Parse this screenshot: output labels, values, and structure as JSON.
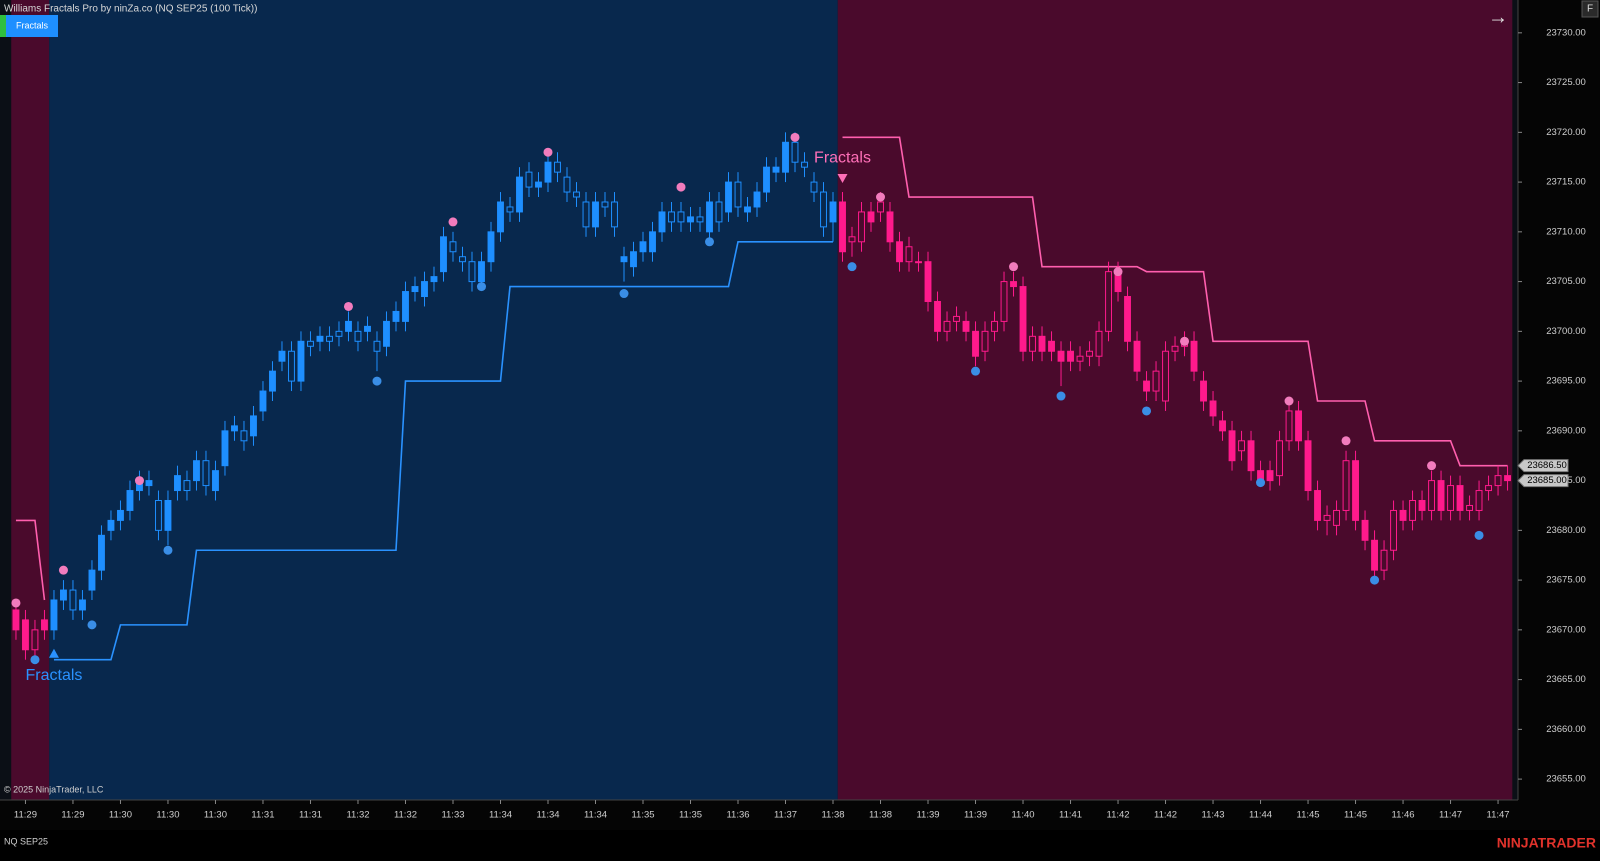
{
  "ui": {
    "window_title": "Williams Fractals Pro by ninZa.co (NQ SEP25 (100 Tick))",
    "tab": "Fractals",
    "copyright": "© 2025 NinjaTrader, LLC",
    "instrument": "NQ SEP25",
    "brand": "NINJATRADER",
    "arrow": "→",
    "corner_button": "F"
  },
  "chart_data": {
    "type": "candlestick",
    "xlim": [
      -1.68,
      158.1
    ],
    "ylim": [
      23652.9,
      23733.3
    ],
    "xticks": [
      {
        "value": 1,
        "label": "11:29"
      },
      {
        "value": 6,
        "label": "11:29"
      },
      {
        "value": 11,
        "label": "11:30"
      },
      {
        "value": 16,
        "label": "11:30"
      },
      {
        "value": 21,
        "label": "11:30"
      },
      {
        "value": 26,
        "label": "11:31"
      },
      {
        "value": 31,
        "label": "11:31"
      },
      {
        "value": 36,
        "label": "11:32"
      },
      {
        "value": 41,
        "label": "11:32"
      },
      {
        "value": 46,
        "label": "11:33"
      },
      {
        "value": 51,
        "label": "11:34"
      },
      {
        "value": 56,
        "label": "11:34"
      },
      {
        "value": 61,
        "label": "11:34"
      },
      {
        "value": 66,
        "label": "11:35"
      },
      {
        "value": 71,
        "label": "11:35"
      },
      {
        "value": 76,
        "label": "11:36"
      },
      {
        "value": 81,
        "label": "11:37"
      },
      {
        "value": 86,
        "label": "11:38"
      },
      {
        "value": 91,
        "label": "11:38"
      },
      {
        "value": 96,
        "label": "11:39"
      },
      {
        "value": 101,
        "label": "11:39"
      },
      {
        "value": 106,
        "label": "11:40"
      },
      {
        "value": 111,
        "label": "11:41"
      },
      {
        "value": 116,
        "label": "11:42"
      },
      {
        "value": 121,
        "label": "11:42"
      },
      {
        "value": 126,
        "label": "11:43"
      },
      {
        "value": 131,
        "label": "11:44"
      },
      {
        "value": 136,
        "label": "11:45"
      },
      {
        "value": 141,
        "label": "11:45"
      },
      {
        "value": 146,
        "label": "11:46"
      },
      {
        "value": 151,
        "label": "11:47"
      },
      {
        "value": 156,
        "label": "11:47"
      }
    ],
    "yticks": [
      {
        "value": 23655,
        "label": "23655.00"
      },
      {
        "value": 23660,
        "label": "23660.00"
      },
      {
        "value": 23665,
        "label": "23665.00"
      },
      {
        "value": 23670,
        "label": "23670.00"
      },
      {
        "value": 23675,
        "label": "23675.00"
      },
      {
        "value": 23680,
        "label": "23680.00"
      },
      {
        "value": 23685,
        "label": "23685.00"
      },
      {
        "value": 23690,
        "label": "23690.00"
      },
      {
        "value": 23695,
        "label": "23695.00"
      },
      {
        "value": 23700,
        "label": "23700.00"
      },
      {
        "value": 23705,
        "label": "23705.00"
      },
      {
        "value": 23710,
        "label": "23710.00"
      },
      {
        "value": 23715,
        "label": "23715.00"
      },
      {
        "value": 23720,
        "label": "23720.00"
      },
      {
        "value": 23725,
        "label": "23725.00"
      },
      {
        "value": 23730,
        "label": "23730.00"
      }
    ],
    "last_price_labels": [
      {
        "value": 23686.5,
        "label": "23686.50"
      },
      {
        "value": 23685,
        "label": "23685.00"
      }
    ],
    "regimes": [
      {
        "start": 0,
        "end": 3,
        "background": "#4a0a2c",
        "candle_color": "#ff1a8c",
        "filled": "down"
      },
      {
        "start": 4,
        "end": 86,
        "background": "#08284d",
        "candle_color": "#1e8fff",
        "filled": "up"
      },
      {
        "start": 87,
        "end": 157,
        "background": "#4a0a2c",
        "candle_color": "#ff1a8c",
        "filled": "down"
      }
    ],
    "open": [
      23672,
      23671,
      23668,
      23671,
      23670,
      23673,
      23674,
      23672,
      23674,
      23676,
      23680,
      23681,
      23682,
      23684,
      23684.5,
      23683,
      23680,
      23684,
      23685,
      23685,
      23687,
      23684,
      23686.5,
      23690,
      23690,
      23689.5,
      23692,
      23694,
      23697,
      23698,
      23695,
      23699,
      23699,
      23699.5,
      23700,
      23700,
      23700,
      23700,
      23699,
      23698.5,
      23701,
      23701,
      23704,
      23703.5,
      23705,
      23706,
      23709,
      23707.5,
      23707,
      23705,
      23707,
      23710,
      23712.5,
      23712,
      23716,
      23714.5,
      23715,
      23717,
      23715.5,
      23714,
      23713,
      23710.5,
      23713,
      23713,
      23707,
      23706.5,
      23708,
      23708,
      23710,
      23712,
      23712,
      23711,
      23711.5,
      23710,
      23713,
      23712,
      23715,
      23712,
      23712.5,
      23714,
      23716,
      23716,
      23719,
      23717,
      23715,
      23714,
      23711,
      23713,
      23709,
      23709,
      23712,
      23712,
      23712,
      23709,
      23707,
      23707,
      23707,
      23703,
      23700,
      23701,
      23701,
      23700,
      23698,
      23700,
      23701,
      23705,
      23704.5,
      23698,
      23699.5,
      23699,
      23698,
      23698,
      23697,
      23697.5,
      23697.5,
      23700,
      23706,
      23703.5,
      23699,
      23695,
      23694,
      23693,
      23698,
      23698.5,
      23699,
      23695,
      23693,
      23691,
      23690,
      23688,
      23689,
      23686,
      23686,
      23685.5,
      23689,
      23692,
      23689,
      23684,
      23681,
      23680.5,
      23682,
      23687,
      23681,
      23679,
      23676,
      23678,
      23682,
      23681,
      23683,
      23682,
      23685,
      23682,
      23684.5,
      23682,
      23682,
      23684,
      23684.5,
      23685.5
    ],
    "high": [
      23673,
      23672,
      23671,
      23672,
      23674,
      23675,
      23675,
      23674,
      23677,
      23680.5,
      23682,
      23683,
      23685,
      23686,
      23686,
      23684,
      23684,
      23686.5,
      23686,
      23688,
      23688,
      23687,
      23691,
      23691.5,
      23691,
      23692.5,
      23695,
      23697,
      23699,
      23699,
      23700,
      23700,
      23700.5,
      23700.5,
      23701,
      23702,
      23701,
      23701.5,
      23700,
      23702,
      23703,
      23705,
      23705.5,
      23706,
      23706.5,
      23710.5,
      23710,
      23708.5,
      23708,
      23708,
      23711,
      23714,
      23713.5,
      23716.5,
      23717,
      23716,
      23718,
      23718,
      23716.5,
      23715,
      23714,
      23714,
      23714,
      23714,
      23708.5,
      23709,
      23710,
      23711,
      23713,
      23713,
      23713,
      23712.5,
      23712.5,
      23714,
      23714,
      23716,
      23716,
      23713.5,
      23715,
      23717.5,
      23717.5,
      23720,
      23720,
      23718,
      23716,
      23715,
      23714,
      23714,
      23710.5,
      23713,
      23713,
      23714,
      23713,
      23710,
      23709.5,
      23708,
      23708,
      23704,
      23702,
      23702.5,
      23702,
      23701,
      23701,
      23702,
      23706,
      23706,
      23705.5,
      23700.5,
      23700.5,
      23700,
      23699,
      23699,
      23698.5,
      23699,
      23701,
      23707,
      23707,
      23704.5,
      23700,
      23696,
      23697,
      23699,
      23699.5,
      23700,
      23700,
      23696,
      23694,
      23692,
      23691,
      23690,
      23690,
      23687,
      23687,
      23690,
      23693,
      23693,
      23690,
      23685,
      23682.5,
      23683,
      23688,
      23688,
      23682,
      23680,
      23679,
      23683,
      23683,
      23684,
      23684,
      23686,
      23686,
      23685.5,
      23685.5,
      23683.5,
      23685,
      23685.5,
      23686.5,
      23686.5
    ],
    "low": [
      23669,
      23667,
      23667,
      23669,
      23669,
      23672,
      23671,
      23671,
      23673,
      23675,
      23679,
      23680,
      23681,
      23683,
      23683.5,
      23679,
      23678.5,
      23683,
      23683,
      23684,
      23683.5,
      23683,
      23685.5,
      23689,
      23688,
      23688.5,
      23691,
      23693,
      23696,
      23694,
      23694,
      23697.5,
      23698,
      23698,
      23698.5,
      23699,
      23698,
      23699,
      23696,
      23697.5,
      23700,
      23700,
      23703,
      23702.5,
      23704,
      23705,
      23707,
      23706,
      23704,
      23704.5,
      23706,
      23709,
      23711,
      23711,
      23713.5,
      23713.5,
      23714,
      23715,
      23713,
      23712.5,
      23709.5,
      23709.5,
      23711.5,
      23709.5,
      23705,
      23705.5,
      23707,
      23707,
      23709,
      23710,
      23710,
      23710,
      23710,
      23709,
      23710,
      23711,
      23711.5,
      23711,
      23711.5,
      23713,
      23715,
      23715,
      23716,
      23715.5,
      23713,
      23709.5,
      23709,
      23707,
      23707.5,
      23708,
      23710,
      23711,
      23708,
      23706,
      23706,
      23706,
      23702,
      23699,
      23699,
      23700,
      23699,
      23696.5,
      23697,
      23699,
      23700,
      23703.5,
      23697,
      23697,
      23697,
      23697,
      23694.5,
      23696,
      23696,
      23696.5,
      23696.5,
      23699,
      23703,
      23698,
      23695,
      23693,
      23693,
      23692,
      23697,
      23697.5,
      23695,
      23692,
      23690.5,
      23689,
      23686,
      23687,
      23685,
      23685,
      23684,
      23684.5,
      23688,
      23688,
      23683,
      23680,
      23679.5,
      23679.5,
      23681,
      23680,
      23678,
      23675,
      23675,
      23677,
      23680,
      23680,
      23681,
      23681,
      23681,
      23681,
      23681,
      23681,
      23681,
      23683,
      23683.5,
      23684
    ],
    "close": [
      23670,
      23668,
      23670,
      23670,
      23673,
      23674,
      23672,
      23673,
      23676,
      23679.5,
      23681,
      23682,
      23684,
      23685,
      23685,
      23680,
      23683,
      23685.5,
      23684,
      23687,
      23684.5,
      23686,
      23690,
      23690.5,
      23689,
      23691.5,
      23694,
      23696,
      23698,
      23695,
      23699,
      23698.5,
      23699.5,
      23699,
      23699.5,
      23701,
      23699,
      23700.5,
      23698,
      23701,
      23702,
      23704,
      23704.5,
      23705,
      23705.5,
      23709.5,
      23708,
      23707,
      23705,
      23707,
      23710,
      23713,
      23712,
      23715.5,
      23714.5,
      23715,
      23717,
      23716,
      23714,
      23713.5,
      23710.5,
      23713,
      23712.5,
      23710.5,
      23707.5,
      23708,
      23709,
      23710,
      23712,
      23711,
      23711,
      23711.5,
      23711,
      23713,
      23711,
      23715,
      23712.5,
      23712.5,
      23714,
      23716.5,
      23716.5,
      23719,
      23717,
      23716.5,
      23714,
      23710.5,
      23713,
      23708,
      23709.5,
      23712,
      23711,
      23713,
      23709,
      23707,
      23708.5,
      23707,
      23703,
      23700,
      23701,
      23701.5,
      23700,
      23697.5,
      23700,
      23701,
      23705,
      23704.5,
      23698,
      23699.5,
      23698,
      23698,
      23697,
      23697,
      23697.5,
      23698,
      23700,
      23706,
      23704,
      23699,
      23696,
      23694,
      23696,
      23698,
      23698.5,
      23699,
      23696,
      23693,
      23691.5,
      23690,
      23687,
      23689,
      23686,
      23685,
      23685,
      23689,
      23692,
      23689,
      23684,
      23681,
      23681.5,
      23682,
      23687,
      23681,
      23679,
      23676,
      23678,
      23682,
      23681,
      23683,
      23682,
      23685,
      23682,
      23684.5,
      23682,
      23682.5,
      23684,
      23684.5,
      23685.5,
      23685
    ],
    "stop_lines": [
      {
        "color": "#ff5fae",
        "x": [
          0,
          2,
          3
        ],
        "values": [
          23681,
          23681,
          23673
        ]
      },
      {
        "color": "#2a92ff",
        "x": [
          4,
          10,
          11,
          18,
          19,
          40,
          41,
          51,
          52,
          75,
          76,
          86
        ],
        "values": [
          23667,
          23667,
          23670.5,
          23670.5,
          23678,
          23678,
          23695,
          23695,
          23704.5,
          23704.5,
          23709,
          23709
        ]
      },
      {
        "color": "#ff5fae",
        "x": [
          87,
          93,
          94,
          107,
          108,
          118,
          119,
          125,
          126,
          136,
          137,
          142,
          143,
          151,
          152,
          157
        ],
        "values": [
          23719.5,
          23719.5,
          23713.5,
          23713.5,
          23706.5,
          23706.5,
          23706,
          23706,
          23699,
          23699,
          23693,
          23693,
          23689,
          23689,
          23686.5,
          23686.5
        ]
      }
    ],
    "fractal_highs": {
      "color": "#f27cbd",
      "x": [
        0,
        5,
        13,
        35,
        46,
        56,
        70,
        82,
        91,
        105,
        116,
        123,
        134,
        140,
        149
      ],
      "values": [
        23672.7,
        23676,
        23685,
        23702.5,
        23711,
        23718,
        23714.5,
        23719.5,
        23713.5,
        23706.5,
        23706,
        23699,
        23693,
        23689,
        23686.5
      ]
    },
    "fractal_lows": {
      "color": "#3a8ee6",
      "x": [
        2,
        8,
        16,
        38,
        49,
        64,
        73,
        88,
        101,
        110,
        119,
        131,
        143,
        154
      ],
      "values": [
        23667,
        23670.5,
        23678,
        23695,
        23704.5,
        23703.8,
        23709,
        23706.5,
        23696,
        23693.5,
        23692,
        23684.8,
        23675,
        23679.5
      ]
    },
    "signals": [
      {
        "index": 4,
        "direction": "up",
        "label": "Fractals",
        "color": "#2a92ff"
      },
      {
        "index": 87,
        "direction": "down",
        "label": "Fractals",
        "color": "#ff6fb8"
      }
    ]
  }
}
